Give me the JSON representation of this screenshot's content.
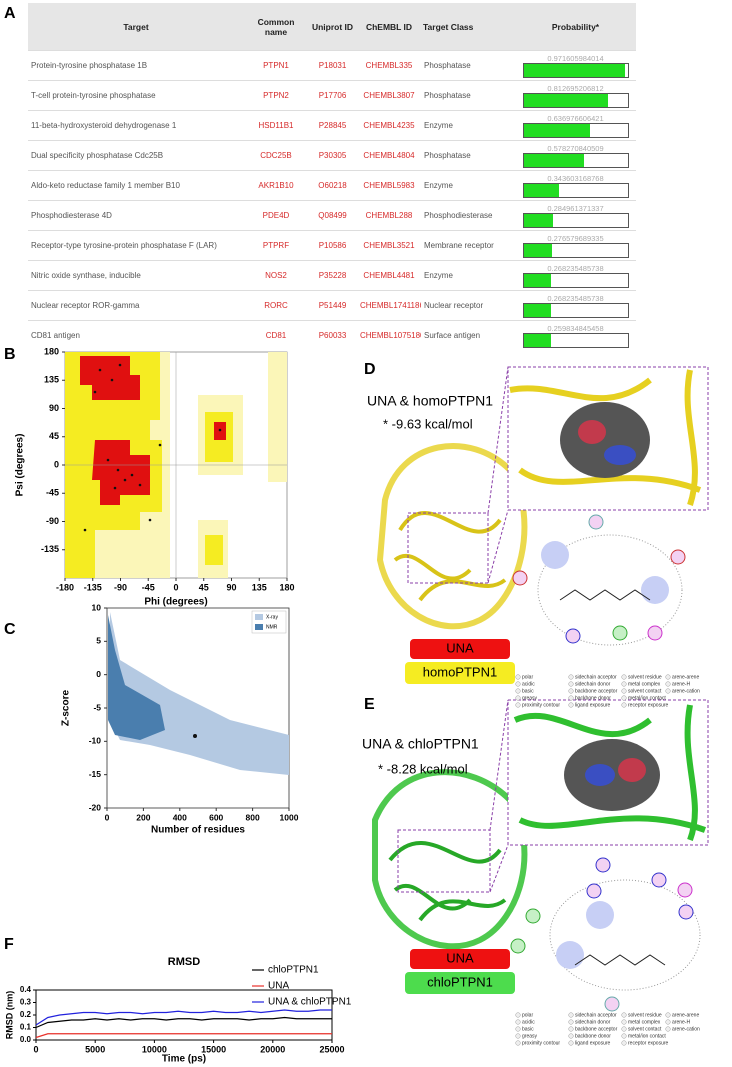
{
  "panel_labels": [
    "A",
    "B",
    "C",
    "D",
    "E",
    "F"
  ],
  "table": {
    "columns": [
      "Target",
      "Common name",
      "Uniprot ID",
      "ChEMBL ID",
      "Target Class",
      "Probability*"
    ],
    "rows": [
      [
        "Protein-tyrosine phosphatase 1B",
        "PTPN1",
        "P18031",
        "CHEMBL335",
        "Phosphatase",
        0.971605984014
      ],
      [
        "T-cell protein-tyrosine phosphatase",
        "PTPN2",
        "P17706",
        "CHEMBL3807",
        "Phosphatase",
        0.812695206812
      ],
      [
        "11-beta-hydroxysteroid dehydrogenase 1",
        "HSD11B1",
        "P28845",
        "CHEMBL4235",
        "Enzyme",
        0.636976606421
      ],
      [
        "Dual specificity phosphatase Cdc25B",
        "CDC25B",
        "P30305",
        "CHEMBL4804",
        "Phosphatase",
        0.578270840509
      ],
      [
        "Aldo-keto reductase family 1 member B10",
        "AKR1B10",
        "O60218",
        "CHEMBL5983",
        "Enzyme",
        0.343603168768
      ],
      [
        "Phosphodiesterase 4D",
        "PDE4D",
        "Q08499",
        "CHEMBL288",
        "Phosphodiesterase",
        0.284961371337
      ],
      [
        "Receptor-type tyrosine-protein phosphatase F (LAR)",
        "PTPRF",
        "P10586",
        "CHEMBL3521",
        "Membrane receptor",
        0.276579689335
      ],
      [
        "Nitric oxide synthase, inducible",
        "NOS2",
        "P35228",
        "CHEMBL4481",
        "Enzyme",
        0.268235485738
      ],
      [
        "Nuclear receptor ROR-gamma",
        "RORC",
        "P51449",
        "CHEMBL1741186",
        "Nuclear receptor",
        0.268235485738
      ],
      [
        "CD81 antigen",
        "CD81",
        "P60033",
        "CHEMBL1075180",
        "Surface antigen",
        0.259834845458
      ]
    ]
  },
  "charts": {
    "ramachandran": {
      "type": "region",
      "xlabel": "Phi (degrees)",
      "ylabel": "Psi (degrees)",
      "xlim": [
        -180,
        180
      ],
      "ylim": [
        -180,
        180
      ],
      "xticks": [
        -180,
        -135,
        -90,
        -45,
        0,
        45,
        90,
        135,
        180
      ],
      "yticks": [
        180,
        135,
        90,
        45,
        0,
        -45,
        -90,
        -135
      ]
    },
    "zscore": {
      "type": "scatter",
      "xlabel": "Number of residues",
      "ylabel": "Z-score",
      "xlim": [
        0,
        1000
      ],
      "ylim": [
        -20,
        10
      ],
      "xticks": [
        0,
        200,
        400,
        600,
        800,
        1000
      ],
      "yticks": [
        10,
        5,
        0,
        -5,
        -10,
        -15,
        -20
      ],
      "legend": [
        {
          "name": "X-ray",
          "color": "#b4c9e2"
        },
        {
          "name": "NMR",
          "color": "#4a7eae"
        }
      ]
    },
    "rmsd": {
      "type": "line",
      "title": "RMSD",
      "xlabel": "Time (ps)",
      "ylabel": "RMSD (nm)",
      "xlim": [
        0,
        25000
      ],
      "ylim": [
        0,
        0.4
      ],
      "xticks": [
        0,
        5000,
        10000,
        15000,
        20000,
        25000
      ],
      "yticks": [
        {
          "value": 0,
          "label": "0.0"
        },
        0.1,
        0.2,
        0.3,
        0.4
      ],
      "x": [
        0,
        1000,
        2000,
        3000,
        4000,
        5000,
        6000,
        7000,
        8000,
        9000,
        10000,
        11000,
        12000,
        13000,
        14000,
        15000,
        16000,
        17000,
        18000,
        19000,
        20000,
        21000,
        22000,
        23000,
        24000,
        25000
      ],
      "series": [
        {
          "name": "chloPTPN1",
          "color": "#000000",
          "values": [
            0.1,
            0.14,
            0.15,
            0.16,
            0.16,
            0.17,
            0.16,
            0.17,
            0.16,
            0.17,
            0.17,
            0.16,
            0.17,
            0.17,
            0.16,
            0.17,
            0.17,
            0.17,
            0.16,
            0.17,
            0.17,
            0.18,
            0.17,
            0.17,
            0.17,
            0.17
          ]
        },
        {
          "name": "UNA",
          "color": "#e8302a",
          "values": [
            0.02,
            0.05,
            0.05,
            0.05,
            0.05,
            0.05,
            0.05,
            0.05,
            0.05,
            0.05,
            0.05,
            0.05,
            0.05,
            0.05,
            0.05,
            0.05,
            0.05,
            0.05,
            0.05,
            0.05,
            0.05,
            0.05,
            0.05,
            0.05,
            0.05,
            0.05
          ]
        },
        {
          "name": "UNA & chloPTPN1",
          "color": "#2222dd",
          "values": [
            0.12,
            0.18,
            0.2,
            0.21,
            0.22,
            0.22,
            0.21,
            0.22,
            0.22,
            0.21,
            0.22,
            0.22,
            0.23,
            0.22,
            0.22,
            0.23,
            0.22,
            0.22,
            0.23,
            0.22,
            0.23,
            0.24,
            0.23,
            0.23,
            0.24,
            0.24
          ]
        }
      ]
    }
  },
  "docking": [
    {
      "title": "UNA & homoPTPN1",
      "energy": "* -9.63 kcal/mol",
      "ligand": "UNA",
      "receptor": "homoPTPN1"
    },
    {
      "title": "UNA & chloPTPN1",
      "energy": "* -8.28 kcal/mol",
      "ligand": "UNA",
      "receptor": "chloPTPN1"
    }
  ],
  "interaction_legend": [
    "polar",
    "acidic",
    "basic",
    "greasy",
    "proximity contour",
    "sidechain acceptor",
    "sidechain donor",
    "backbone acceptor",
    "backbone donor",
    "ligand exposure",
    "solvent residue",
    "metal complex",
    "solvent contact",
    "metal/ion contact",
    "receptor exposure",
    "arene-arene",
    "arene-H",
    "arene-cation"
  ]
}
